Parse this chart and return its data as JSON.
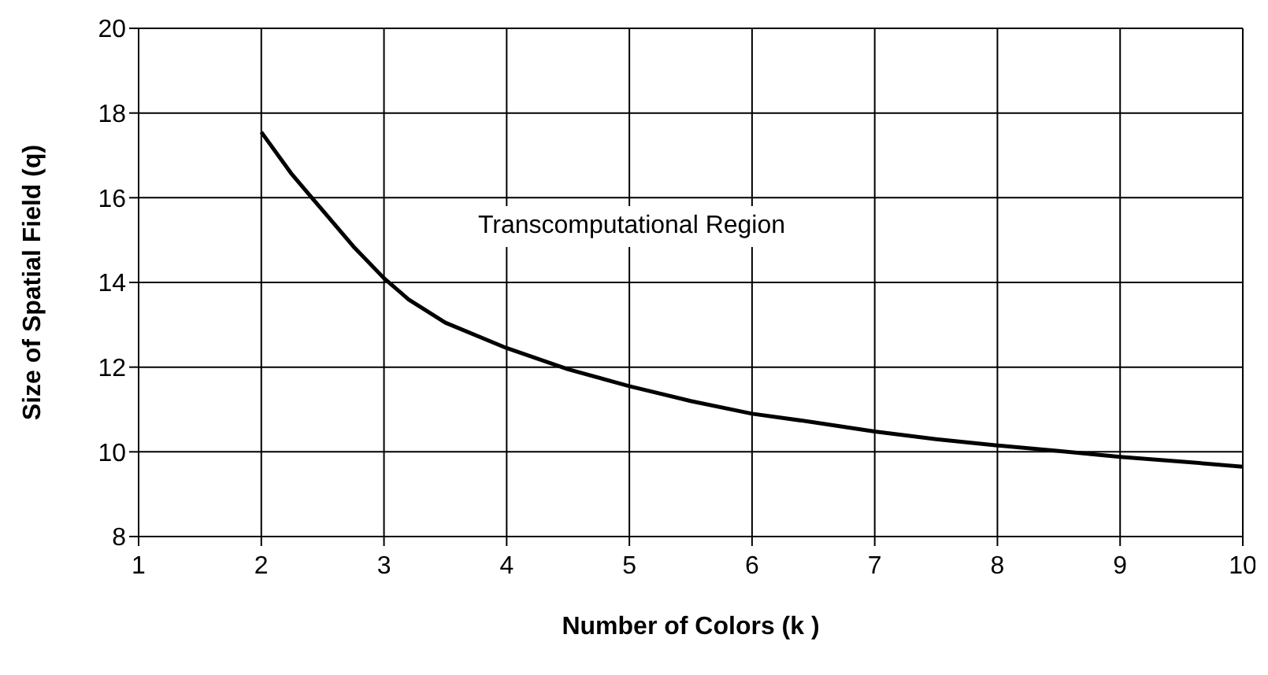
{
  "chart_data": {
    "type": "line",
    "xlabel": "Number of Colors (k )",
    "ylabel": "Size of Spatial Field (q)",
    "x": [
      2,
      2.25,
      2.5,
      2.75,
      3,
      3.2,
      3.5,
      4,
      4.5,
      5,
      5.5,
      6,
      6.5,
      7,
      7.5,
      8,
      8.5,
      9,
      9.5,
      10
    ],
    "series": [
      {
        "color": "#000000",
        "values": [
          17.55,
          16.55,
          15.7,
          14.85,
          14.1,
          13.6,
          13.05,
          12.45,
          11.95,
          11.55,
          11.2,
          10.9,
          10.7,
          10.48,
          10.3,
          10.15,
          10.02,
          9.88,
          9.77,
          9.65
        ]
      }
    ],
    "xlim": [
      1,
      10
    ],
    "xticks": [
      1,
      2,
      3,
      4,
      5,
      6,
      7,
      8,
      9,
      10
    ],
    "ylim": [
      8,
      20
    ],
    "yticks": [
      8,
      10,
      12,
      14,
      16,
      18,
      20
    ],
    "grid": true,
    "legend": false,
    "marker": "none",
    "line_style": "solid",
    "annotations": [
      "Transcomputational Region"
    ]
  }
}
